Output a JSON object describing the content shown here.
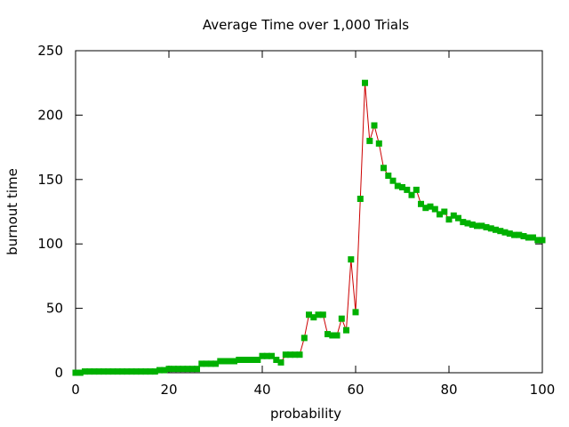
{
  "chart_data": {
    "type": "line",
    "title": "Average Time over 1,000 Trials",
    "xlabel": "probability",
    "ylabel": "burnout time",
    "xlim": [
      0,
      100
    ],
    "ylim": [
      0,
      250
    ],
    "xticks": [
      0,
      20,
      40,
      60,
      80,
      100
    ],
    "yticks": [
      0,
      50,
      100,
      150,
      200,
      250
    ],
    "grid": false,
    "legend": "none",
    "line_color": "#cc0000",
    "marker_color": "#00b000",
    "x": [
      0,
      1,
      2,
      3,
      4,
      5,
      6,
      7,
      8,
      9,
      10,
      11,
      12,
      13,
      14,
      15,
      16,
      17,
      18,
      19,
      20,
      21,
      22,
      23,
      24,
      25,
      26,
      27,
      28,
      29,
      30,
      31,
      32,
      33,
      34,
      35,
      36,
      37,
      38,
      39,
      40,
      41,
      42,
      43,
      44,
      45,
      46,
      47,
      48,
      49,
      50,
      51,
      52,
      53,
      54,
      55,
      56,
      57,
      58,
      59,
      60,
      61,
      62,
      63,
      64,
      65,
      66,
      67,
      68,
      69,
      70,
      71,
      72,
      73,
      74,
      75,
      76,
      77,
      78,
      79,
      80,
      81,
      82,
      83,
      84,
      85,
      86,
      87,
      88,
      89,
      90,
      91,
      92,
      93,
      94,
      95,
      96,
      97,
      98,
      99,
      100
    ],
    "y": [
      0,
      0,
      1,
      1,
      1,
      1,
      1,
      1,
      1,
      1,
      1,
      1,
      1,
      1,
      1,
      1,
      1,
      1,
      2,
      2,
      3,
      3,
      3,
      3,
      3,
      3,
      3,
      7,
      7,
      7,
      7,
      9,
      9,
      9,
      9,
      10,
      10,
      10,
      10,
      10,
      13,
      13,
      13,
      10,
      8,
      14,
      14,
      14,
      14,
      27,
      45,
      43,
      45,
      45,
      30,
      29,
      29,
      42,
      33,
      88,
      47,
      135,
      225,
      180,
      192,
      178,
      159,
      153,
      149,
      145,
      144,
      142,
      138,
      142,
      131,
      128,
      129,
      127,
      123,
      125,
      119,
      122,
      120,
      117,
      116,
      115,
      114,
      114,
      113,
      112,
      111,
      110,
      109,
      108,
      107,
      107,
      106,
      105,
      105,
      103,
      103
    ]
  }
}
